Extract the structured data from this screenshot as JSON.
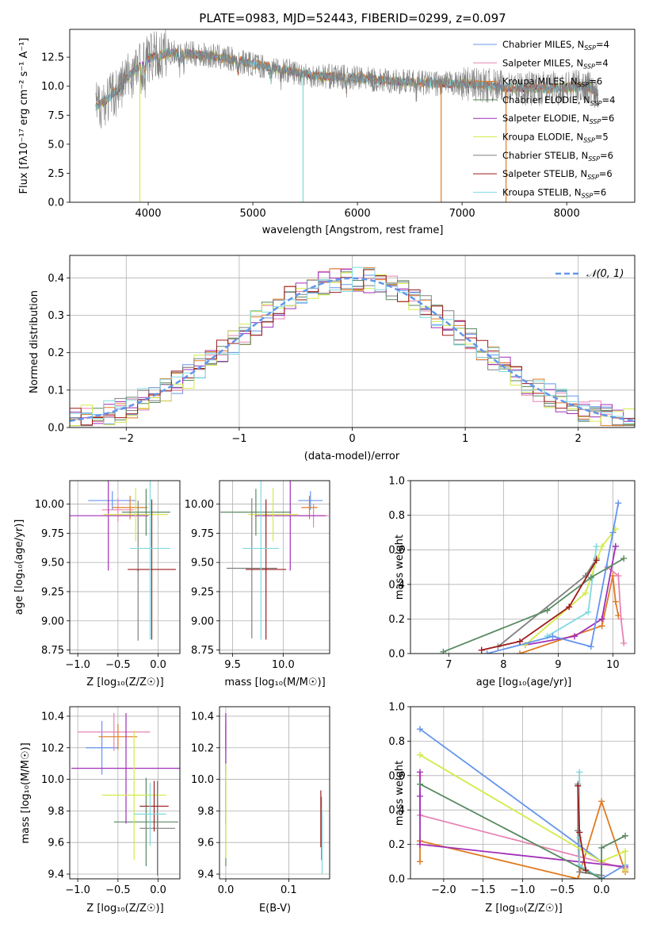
{
  "colors": {
    "chabrier_miles": "#6495ED",
    "salpeter_miles": "#E683B4",
    "kroupa_miles": "#E07B21",
    "chabrier_elodie": "#5A8A62",
    "salpeter_elodie": "#A12FB8",
    "kroupa_elodie": "#D4EA4A",
    "chabrier_stelib": "#808080",
    "salpeter_stelib": "#9E1A1A",
    "kroupa_stelib": "#7ED9E0",
    "normal_curve": "#6495ED"
  },
  "chart_data": [
    {
      "id": "spectrum",
      "type": "line",
      "title": "PLATE=0983, MJD=52443, FIBERID=0299, z=0.097",
      "xlabel": "wavelength [Angstrom, rest frame]",
      "ylabel": "Flux [fλ10⁻¹⁷ erg cm⁻² s⁻¹ A⁻¹]",
      "xlim": [
        3250,
        8650
      ],
      "ylim": [
        0,
        14.9
      ],
      "xticks": [
        "4000",
        "5000",
        "6000",
        "7000",
        "8000"
      ],
      "yticks": [
        "0.0",
        "2.5",
        "5.0",
        "7.5",
        "10.0",
        "12.5"
      ],
      "grid": false,
      "legend_position": "top-right",
      "continuum": {
        "x": [
          3500,
          3600,
          3700,
          3800,
          3900,
          4000,
          4200,
          4400,
          4600,
          4800,
          5000,
          5200,
          5400,
          5600,
          5800,
          6000,
          6200,
          6400,
          6600,
          6800,
          7000,
          7200,
          7400,
          7600,
          7800,
          8000,
          8200,
          8300
        ],
        "y": [
          8.3,
          8.8,
          9.6,
          10.8,
          11.6,
          12.4,
          12.9,
          12.8,
          12.6,
          12.3,
          11.9,
          11.6,
          11.2,
          10.9,
          10.8,
          10.7,
          10.5,
          10.4,
          10.3,
          10.2,
          10.2,
          10.1,
          9.9,
          9.8,
          9.8,
          9.9,
          10.0,
          9.4
        ]
      },
      "series": [
        {
          "name": "Chabrier MILES, N_SSP=4",
          "label_main": "Chabrier MILES, N",
          "label_sub": "SSP",
          "label_end": "=4",
          "color_key": "chabrier_miles"
        },
        {
          "name": "Salpeter MILES, N_SSP=4",
          "label_main": "Salpeter MILES, N",
          "label_sub": "SSP",
          "label_end": "=4",
          "color_key": "salpeter_miles"
        },
        {
          "name": "Kroupa MILES, N_SSP=6",
          "label_main": "Kroupa MILES, N",
          "label_sub": "SSP",
          "label_end": "=6",
          "color_key": "kroupa_miles"
        },
        {
          "name": "Chabrier ELODIE, N_SSP=4",
          "label_main": "Chabrier ELODIE, N",
          "label_sub": "SSP",
          "label_end": "=4",
          "color_key": "chabrier_elodie"
        },
        {
          "name": "Salpeter ELODIE, N_SSP=6",
          "label_main": "Salpeter ELODIE, N",
          "label_sub": "SSP",
          "label_end": "=6",
          "color_key": "salpeter_elodie"
        },
        {
          "name": "Kroupa ELODIE, N_SSP=5",
          "label_main": "Kroupa ELODIE, N",
          "label_sub": "SSP",
          "label_end": "=5",
          "color_key": "kroupa_elodie"
        },
        {
          "name": "Chabrier STELIB, N_SSP=6",
          "label_main": "Chabrier STELIB, N",
          "label_sub": "SSP",
          "label_end": "=6",
          "color_key": "chabrier_stelib"
        },
        {
          "name": "Salpeter STELIB, N_SSP=6",
          "label_main": "Salpeter STELIB, N",
          "label_sub": "SSP",
          "label_end": "=6",
          "color_key": "salpeter_stelib"
        },
        {
          "name": "Kroupa STELIB, N_SSP=6",
          "label_main": "Kroupa STELIB, N",
          "label_sub": "SSP",
          "label_end": "=6",
          "color_key": "kroupa_stelib"
        }
      ],
      "dropouts": [
        {
          "x": 3920,
          "color_key": "kroupa_elodie"
        },
        {
          "x": 5480,
          "color_key": "kroupa_stelib"
        },
        {
          "x": 6800,
          "color_key": "kroupa_miles"
        },
        {
          "x": 7420,
          "color_key": "kroupa_miles"
        }
      ]
    },
    {
      "id": "residuals",
      "type": "bar",
      "xlabel": "(data-model)/error",
      "ylabel": "Normed distribution",
      "xlim": [
        -2.5,
        2.5
      ],
      "ylim": [
        0,
        0.46
      ],
      "xticks": [
        "−2",
        "−1",
        "0",
        "1",
        "2"
      ],
      "yticks": [
        "0.0",
        "0.1",
        "0.2",
        "0.3",
        "0.4"
      ],
      "grid": true,
      "legend_position": "top-right",
      "curve_label": "𝒩(0, 1)",
      "bin_width": 0.1,
      "bins_start": -2.5,
      "bins_count": 50
    },
    {
      "id": "age_vs_Z",
      "type": "scatter",
      "xlabel": "Z [log₁₀(Z/Z☉)]",
      "ylabel": "age  [log₁₀(age/yr)]",
      "xlim": [
        -1.1,
        0.27
      ],
      "ylim": [
        8.72,
        10.2
      ],
      "xticks": [
        "−1.0",
        "−0.5",
        "0.0"
      ],
      "yticks": [
        "8.75",
        "9.00",
        "9.25",
        "9.50",
        "9.75",
        "10.00"
      ],
      "grid": true,
      "points": [
        {
          "x": -0.57,
          "xerr": 0.3,
          "y": 10.03,
          "yerr": 0.08,
          "color_key": "chabrier_miles"
        },
        {
          "x": -0.5,
          "xerr": 0.2,
          "y": 9.95,
          "yerr": 0.1,
          "color_key": "salpeter_miles"
        },
        {
          "x": -0.35,
          "xerr": 0.22,
          "y": 9.97,
          "yerr": 0.1,
          "color_key": "kroupa_miles"
        },
        {
          "x": -0.15,
          "xerr": 0.3,
          "y": 9.93,
          "yerr": 0.2,
          "color_key": "chabrier_elodie"
        },
        {
          "x": -0.62,
          "xerr": 0.5,
          "y": 9.9,
          "yerr": 0.47,
          "color_key": "salpeter_elodie"
        },
        {
          "x": -0.28,
          "xerr": 0.4,
          "y": 9.91,
          "yerr": 0.23,
          "color_key": "kroupa_elodie"
        },
        {
          "x": -0.25,
          "xerr": 0.01,
          "y": 9.43,
          "yerr": 0.6,
          "color_key": "chabrier_stelib"
        },
        {
          "x": -0.08,
          "xerr": 0.3,
          "y": 9.44,
          "yerr": 0.6,
          "color_key": "salpeter_stelib"
        },
        {
          "x": -0.1,
          "xerr": 0.25,
          "y": 9.62,
          "yerr": 0.78,
          "color_key": "kroupa_stelib"
        }
      ]
    },
    {
      "id": "age_vs_mass",
      "type": "scatter",
      "xlabel": "mass [log₁₀(M/M☉)]",
      "ylabel": "",
      "xlim": [
        9.37,
        10.46
      ],
      "ylim": [
        8.72,
        10.2
      ],
      "xticks": [
        "9.5",
        "10.0"
      ],
      "yticks": [
        "8.75",
        "9.00",
        "9.25",
        "9.50",
        "9.75",
        "10.00"
      ],
      "grid": true,
      "points": [
        {
          "x": 10.27,
          "xerr": 0.12,
          "y": 10.03,
          "yerr": 0.08,
          "color_key": "chabrier_miles"
        },
        {
          "x": 10.3,
          "xerr": 0.15,
          "y": 9.9,
          "yerr": 0.1,
          "color_key": "salpeter_miles"
        },
        {
          "x": 10.26,
          "xerr": 0.08,
          "y": 9.97,
          "yerr": 0.1,
          "color_key": "kroupa_miles"
        },
        {
          "x": 9.73,
          "xerr": 0.35,
          "y": 9.93,
          "yerr": 0.2,
          "color_key": "chabrier_elodie"
        },
        {
          "x": 10.07,
          "xerr": 0.35,
          "y": 9.9,
          "yerr": 0.47,
          "color_key": "salpeter_elodie"
        },
        {
          "x": 9.9,
          "xerr": 0.25,
          "y": 9.91,
          "yerr": 0.23,
          "color_key": "kroupa_elodie"
        },
        {
          "x": 9.69,
          "xerr": 0.25,
          "y": 9.45,
          "yerr": 0.6,
          "color_key": "chabrier_stelib"
        },
        {
          "x": 9.83,
          "xerr": 0.2,
          "y": 9.44,
          "yerr": 0.6,
          "color_key": "salpeter_stelib"
        },
        {
          "x": 9.78,
          "xerr": 0.18,
          "y": 9.62,
          "yerr": 0.78,
          "color_key": "kroupa_stelib"
        }
      ]
    },
    {
      "id": "weight_vs_age",
      "type": "line",
      "xlabel": "age  [log₁₀(age/yr)]",
      "ylabel": "mass weight",
      "xlim": [
        6.3,
        10.4
      ],
      "ylim": [
        0,
        1.0
      ],
      "xticks": [
        "7",
        "8",
        "9",
        "10"
      ],
      "yticks": [
        "0.0",
        "0.2",
        "0.4",
        "0.6",
        "0.8",
        "1.0"
      ],
      "grid": true,
      "series": [
        {
          "color_key": "kroupa_miles",
          "x": [
            8.3,
            9.8,
            10.0,
            10.05,
            10.1
          ],
          "y": [
            0.0,
            0.16,
            0.45,
            0.3,
            0.22
          ]
        },
        {
          "color_key": "salpeter_miles",
          "x": [
            9.9,
            10.1,
            10.15,
            10.2
          ],
          "y": [
            0.5,
            0.45,
            0.2,
            0.06
          ]
        },
        {
          "color_key": "chabrier_stelib",
          "x": [
            7.9,
            9.5,
            9.7
          ],
          "y": [
            0.04,
            0.45,
            0.55
          ]
        },
        {
          "color_key": "salpeter_elodie",
          "x": [
            8.4,
            9.3,
            9.8,
            10.05,
            10.05
          ],
          "y": [
            0.05,
            0.1,
            0.2,
            0.62,
            0.62
          ]
        },
        {
          "color_key": "kroupa_stelib",
          "x": [
            8.8,
            9.55,
            9.7
          ],
          "y": [
            0.1,
            0.24,
            0.62
          ]
        },
        {
          "color_key": "kroupa_elodie",
          "x": [
            8.4,
            9.5,
            9.8,
            10.05
          ],
          "y": [
            0.05,
            0.35,
            0.62,
            0.72
          ]
        },
        {
          "color_key": "chabrier_miles",
          "x": [
            7.7,
            8.9,
            9.6,
            10.0,
            10.1
          ],
          "y": [
            0.0,
            0.1,
            0.04,
            0.7,
            0.87
          ]
        },
        {
          "color_key": "chabrier_elodie",
          "x": [
            6.9,
            8.8,
            9.6,
            10.2
          ],
          "y": [
            0.01,
            0.25,
            0.44,
            0.55
          ]
        },
        {
          "color_key": "salpeter_stelib",
          "x": [
            7.6,
            8.3,
            9.2,
            9.7
          ],
          "y": [
            0.02,
            0.07,
            0.27,
            0.54
          ]
        }
      ]
    },
    {
      "id": "mass_vs_Z",
      "type": "scatter",
      "xlabel": "Z [log₁₀(Z/Z☉)]",
      "ylabel": "mass [log₁₀(M/M☉)]",
      "xlim": [
        -1.1,
        0.27
      ],
      "ylim": [
        9.37,
        10.46
      ],
      "xticks": [
        "−1.0",
        "−0.5",
        "0.0"
      ],
      "yticks": [
        "9.4",
        "9.6",
        "9.8",
        "10.0",
        "10.2",
        "10.4"
      ],
      "grid": true,
      "points": [
        {
          "x": -0.7,
          "xerr": 0.2,
          "y": 10.2,
          "yerr": 0.17,
          "color_key": "chabrier_miles"
        },
        {
          "x": -0.55,
          "xerr": 0.45,
          "y": 10.3,
          "yerr": 0.12,
          "color_key": "salpeter_miles"
        },
        {
          "x": -0.5,
          "xerr": 0.24,
          "y": 10.27,
          "yerr": 0.08,
          "color_key": "kroupa_miles"
        },
        {
          "x": -0.15,
          "xerr": 0.4,
          "y": 9.73,
          "yerr": 0.28,
          "color_key": "chabrier_elodie"
        },
        {
          "x": -0.4,
          "xerr": 0.68,
          "y": 10.07,
          "yerr": 0.35,
          "color_key": "salpeter_elodie"
        },
        {
          "x": -0.3,
          "xerr": 0.4,
          "y": 9.9,
          "yerr": 0.41,
          "color_key": "kroupa_elodie"
        },
        {
          "x": -0.01,
          "xerr": 0.22,
          "y": 9.69,
          "yerr": 0.3,
          "color_key": "chabrier_stelib"
        },
        {
          "x": -0.05,
          "xerr": 0.18,
          "y": 9.83,
          "yerr": 0.16,
          "color_key": "salpeter_stelib"
        },
        {
          "x": -0.1,
          "xerr": 0.2,
          "y": 9.78,
          "yerr": 0.2,
          "color_key": "kroupa_stelib"
        }
      ]
    },
    {
      "id": "mass_vs_ebv",
      "type": "scatter",
      "xlabel": "E(B-V)",
      "ylabel": "",
      "xlim": [
        -0.01,
        0.165
      ],
      "ylim": [
        9.37,
        10.46
      ],
      "xticks": [
        "0.0",
        "0.1"
      ],
      "yticks": [
        "9.4",
        "9.6",
        "9.8",
        "10.0",
        "10.2",
        "10.4"
      ],
      "grid": true,
      "points": [
        {
          "x": 0.0,
          "y": 10.2,
          "yerr": 0.17,
          "color_key": "chabrier_miles"
        },
        {
          "x": 0.0,
          "y": 10.3,
          "yerr": 0.12,
          "color_key": "salpeter_miles"
        },
        {
          "x": 0.0,
          "y": 10.27,
          "yerr": 0.08,
          "color_key": "kroupa_miles"
        },
        {
          "x": 0.0,
          "y": 9.73,
          "yerr": 0.28,
          "color_key": "chabrier_elodie"
        },
        {
          "x": 0.0,
          "y": 10.07,
          "yerr": 0.35,
          "color_key": "salpeter_elodie"
        },
        {
          "x": 0.0,
          "y": 9.8,
          "yerr": 0.3,
          "color_key": "kroupa_elodie"
        },
        {
          "x": 0.152,
          "y": 9.69,
          "yerr": 0.2,
          "color_key": "chabrier_stelib"
        },
        {
          "x": 0.151,
          "y": 9.75,
          "yerr": 0.18,
          "color_key": "salpeter_stelib"
        },
        {
          "x": 0.153,
          "y": 9.6,
          "yerr": 0.2,
          "color_key": "kroupa_stelib"
        }
      ]
    },
    {
      "id": "weight_vs_Z",
      "type": "line",
      "xlabel": "Z [log₁₀(Z/Z☉)]",
      "ylabel": "mass weight",
      "xlim": [
        -2.42,
        0.42
      ],
      "ylim": [
        0,
        1.0
      ],
      "xticks": [
        "−2.0",
        "−1.5",
        "−1.0",
        "−0.5",
        "0.0"
      ],
      "yticks": [
        "0.0",
        "0.2",
        "0.4",
        "0.6",
        "0.8",
        "1.0"
      ],
      "grid": true,
      "series": [
        {
          "color_key": "kroupa_miles",
          "x": [
            -2.3,
            -2.3,
            -0.3,
            0.0,
            0.3,
            0.3
          ],
          "y": [
            0.1,
            0.22,
            0.0,
            0.45,
            0.04,
            0.08
          ]
        },
        {
          "color_key": "salpeter_miles",
          "x": [
            -2.3,
            -2.3,
            0.3,
            0.3
          ],
          "y": [
            0.6,
            0.37,
            0.06,
            0.05
          ]
        },
        {
          "color_key": "salpeter_elodie",
          "x": [
            -2.3,
            -2.3,
            -2.3,
            0.3
          ],
          "y": [
            0.62,
            0.48,
            0.2,
            0.07
          ]
        },
        {
          "color_key": "chabrier_stelib",
          "x": [
            -0.3,
            -0.3,
            -0.28,
            0.0
          ],
          "y": [
            0.55,
            0.28,
            0.04,
            0.02
          ]
        },
        {
          "color_key": "kroupa_stelib",
          "x": [
            -0.28,
            -0.28,
            -0.28,
            0.0
          ],
          "y": [
            0.62,
            0.24,
            0.08,
            0.0
          ]
        },
        {
          "color_key": "chabrier_miles",
          "x": [
            -2.3,
            0.0,
            0.0,
            0.3
          ],
          "y": [
            0.87,
            0.1,
            0.0,
            0.08
          ]
        },
        {
          "color_key": "kroupa_elodie",
          "x": [
            -2.3,
            0.0,
            0.3,
            0.3
          ],
          "y": [
            0.72,
            0.1,
            0.16,
            0.05
          ]
        },
        {
          "color_key": "chabrier_elodie",
          "x": [
            -2.3,
            0.0,
            0.0,
            0.3
          ],
          "y": [
            0.55,
            0.0,
            0.18,
            0.25
          ]
        },
        {
          "color_key": "salpeter_stelib",
          "x": [
            -0.3,
            -0.28,
            -0.2
          ],
          "y": [
            0.54,
            0.27,
            0.05
          ]
        }
      ]
    }
  ]
}
